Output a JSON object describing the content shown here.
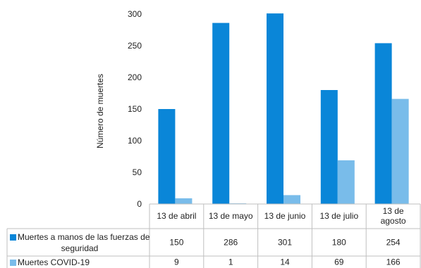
{
  "chart_data": {
    "type": "bar",
    "categories": [
      "13 de abril",
      "13 de mayo",
      "13 de junio",
      "13 de julio",
      "13 de agosto"
    ],
    "series": [
      {
        "name": "Muertes a manos de las fuerzas de seguridad",
        "color": "#0a86d8",
        "values": [
          150,
          286,
          301,
          180,
          254
        ]
      },
      {
        "name": "Muertes COVID-19",
        "color": "#79bcea",
        "values": [
          9,
          1,
          14,
          69,
          166
        ]
      }
    ],
    "display_values": [
      [
        "150",
        "286",
        "301",
        "180",
        "254"
      ],
      [
        "9",
        "1",
        "14",
        "69",
        "166"
      ]
    ],
    "ylabel": "Número de muertes",
    "xlabel": "",
    "title": "",
    "ylim": [
      0,
      300
    ],
    "yticks": [
      0,
      50,
      100,
      150,
      200,
      250,
      300
    ],
    "grid": false,
    "legend": "data-table"
  }
}
